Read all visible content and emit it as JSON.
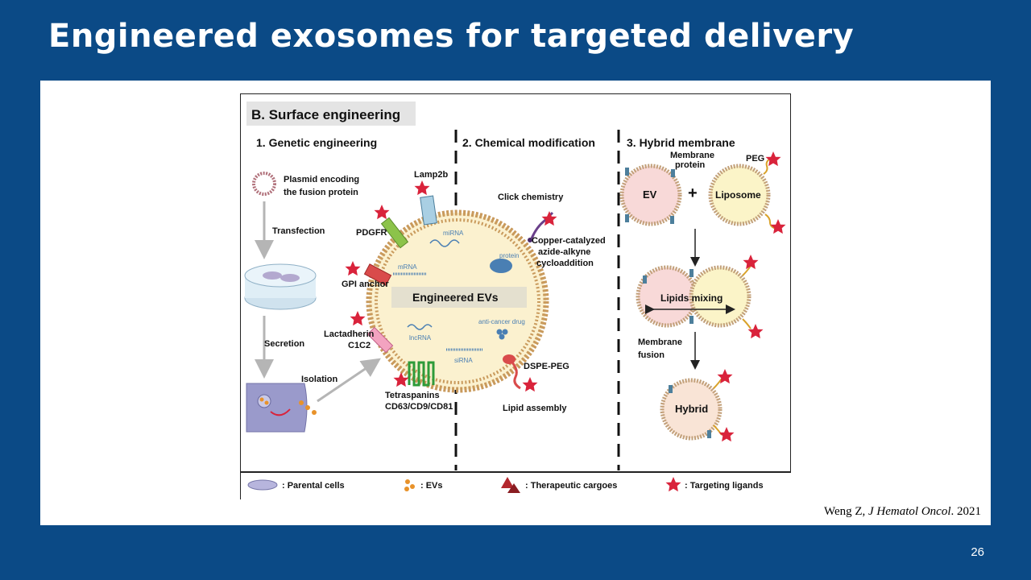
{
  "slide": {
    "title": "Engineered exosomes for targeted delivery",
    "page_number": "26",
    "citation": {
      "author": "Weng Z, ",
      "journal": "J Hematol Oncol",
      "year": ". 2021"
    }
  },
  "figure": {
    "panel_title": "B. Surface engineering",
    "sections": {
      "genetic": "1. Genetic engineering",
      "chemical": "2. Chemical modification",
      "hybrid": "3. Hybrid membrane"
    },
    "genetic_labels": {
      "plasmid_1": "Plasmid encoding",
      "plasmid_2": "the fusion protein",
      "transfection": "Transfection",
      "secretion": "Secretion",
      "isolation": "Isolation",
      "lamp2b": "Lamp2b",
      "pdgfr": "PDGFR",
      "gpi": "GPI anchor",
      "lactadherin_1": "Lactadherin",
      "lactadherin_2": "C1C2",
      "tetraspanins_1": "Tetraspanins",
      "tetraspanins_2": "CD63/CD9/CD81"
    },
    "ev_labels": {
      "center": "Engineered EVs",
      "mirna": "miRNA",
      "mrna": "mRNA",
      "lncrna": "lncRNA",
      "sirna": "siRNA",
      "protein": "protein",
      "drug": "anti-cancer drug"
    },
    "chemical_labels": {
      "click": "Click chemistry",
      "cu_1": "Copper-catalyzed",
      "cu_2": "azide-alkyne",
      "cu_3": "cycloaddition",
      "dspe": "DSPE-PEG",
      "lipid": "Lipid assembly"
    },
    "hybrid_labels": {
      "membrane_1": "Membrane",
      "membrane_2": "protein",
      "ev": "EV",
      "plus": "+",
      "peg": "PEG",
      "liposome": "Liposome",
      "mixing": "Lipids mixing",
      "fusion_1": "Membrane",
      "fusion_2": "fusion",
      "hybrid": "Hybrid"
    },
    "legend": {
      "parental": ": Parental cells",
      "evs": ": EVs",
      "cargoes": ": Therapeutic cargoes",
      "ligands": ": Targeting ligands"
    },
    "colors": {
      "slide_bg": "#0b4a86",
      "star": "#d9233b",
      "ev_fill": "#fbf1cf",
      "ev_bead": "#c99a5c"
    }
  }
}
